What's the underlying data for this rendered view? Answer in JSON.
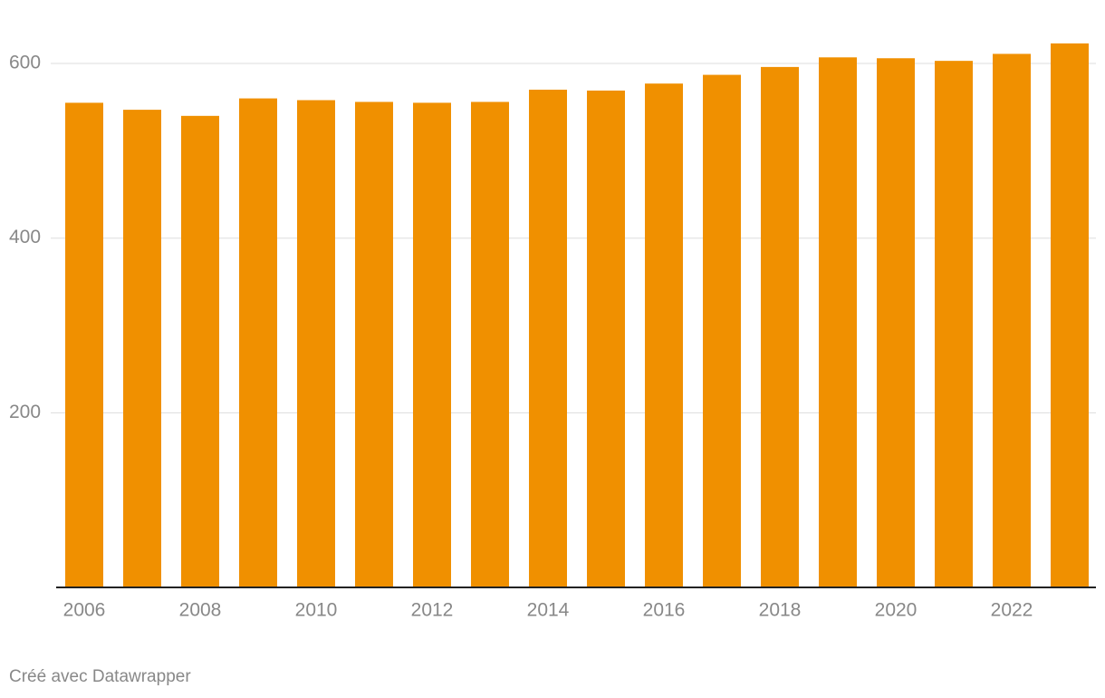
{
  "chart_data": {
    "type": "bar",
    "categories": [
      "2006",
      null,
      "2008",
      null,
      "2010",
      null,
      "2012",
      null,
      "2014",
      null,
      "2016",
      null,
      "2018",
      null,
      "2020",
      null,
      "2022",
      null
    ],
    "values": [
      555,
      547,
      540,
      560,
      558,
      556,
      555,
      556,
      570,
      569,
      577,
      587,
      596,
      607,
      606,
      603,
      611,
      623
    ],
    "color": "#f09000",
    "ylim": [
      0,
      640
    ],
    "yticks": [
      200,
      400,
      600
    ],
    "grid": true,
    "source": "Créé avec Datawrapper"
  }
}
